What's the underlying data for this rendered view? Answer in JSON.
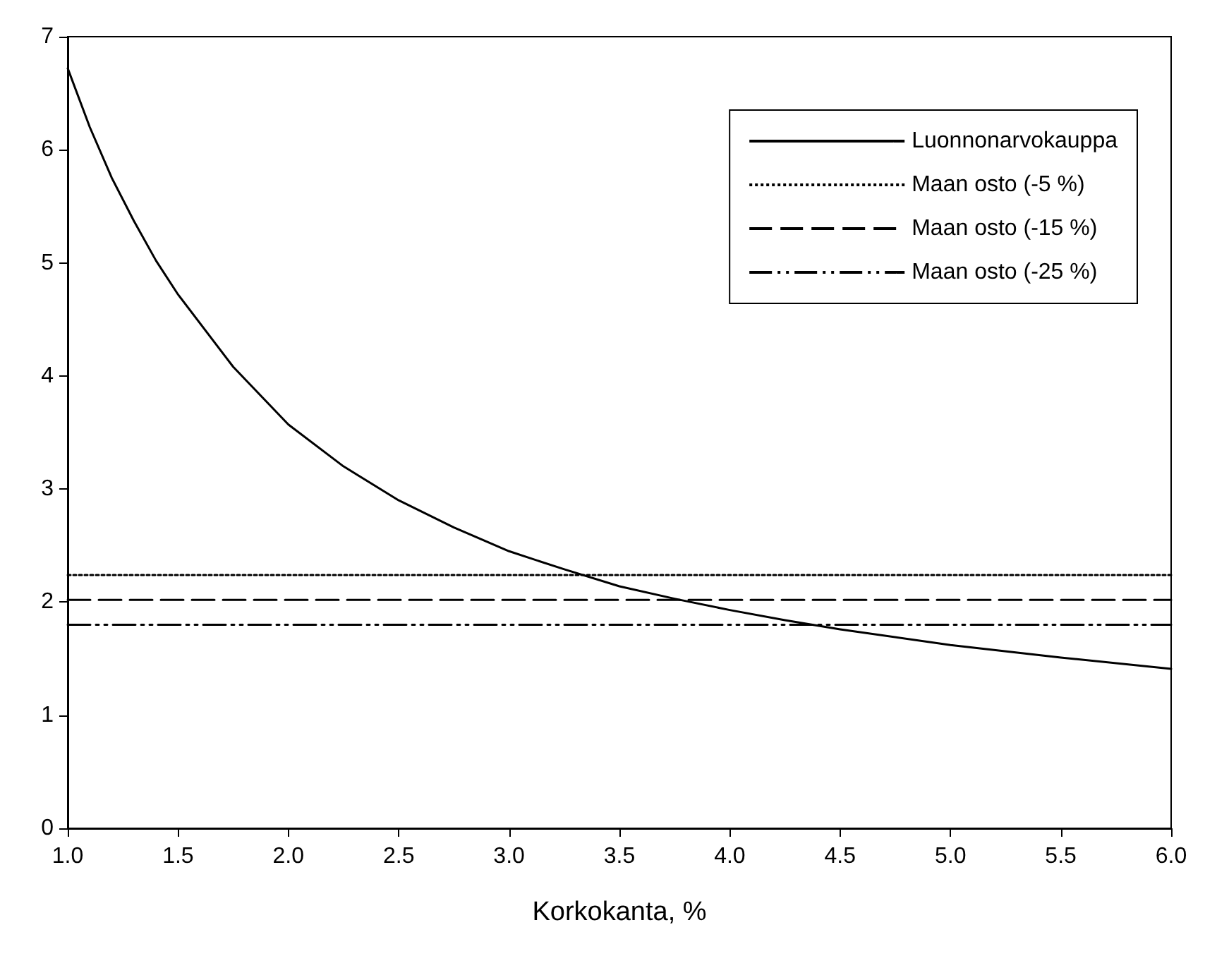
{
  "chart_data": {
    "type": "line",
    "xlabel": "Korkokanta, %",
    "xlim": [
      1,
      6
    ],
    "ylim": [
      0,
      7
    ],
    "xticks": [
      {
        "value": 1,
        "label": "1.0"
      },
      {
        "value": 1.5,
        "label": "1.5"
      },
      {
        "value": 2,
        "label": "2.0"
      },
      {
        "value": 2.5,
        "label": "2.5"
      },
      {
        "value": 3,
        "label": "3.0"
      },
      {
        "value": 3.5,
        "label": "3.5"
      },
      {
        "value": 4,
        "label": "4.0"
      },
      {
        "value": 4.5,
        "label": "4.5"
      },
      {
        "value": 5,
        "label": "5.0"
      },
      {
        "value": 5.5,
        "label": "5.5"
      },
      {
        "value": 6,
        "label": "6.0"
      }
    ],
    "yticks": [
      0,
      1,
      2,
      3,
      4,
      5,
      6,
      7
    ],
    "grid": false,
    "legend": "top right",
    "marker": "none",
    "series": [
      {
        "name": "Luonnonarvokauppa",
        "color": "#000000",
        "line_style": "solid",
        "x": [
          1,
          1.1,
          1.2,
          1.3,
          1.4,
          1.5,
          1.75,
          2,
          2.25,
          2.5,
          2.75,
          3,
          3.25,
          3.5,
          3.75,
          4,
          4.25,
          4.5,
          5,
          5.5,
          6
        ],
        "values": [
          6.72,
          6.2,
          5.75,
          5.37,
          5.02,
          4.72,
          4.08,
          3.57,
          3.2,
          2.9,
          2.66,
          2.45,
          2.29,
          2.14,
          2.03,
          1.93,
          1.84,
          1.76,
          1.62,
          1.51,
          1.41
        ]
      },
      {
        "name": "Maan osto (-5 %)",
        "color": "#000000",
        "line_style": "dotted",
        "x": [
          1,
          6
        ],
        "values": [
          2.24,
          2.24
        ]
      },
      {
        "name": "Maan osto (-15 %)",
        "color": "#000000",
        "line_style": "dashed",
        "x": [
          1,
          6
        ],
        "values": [
          2.02,
          2.02
        ]
      },
      {
        "name": "Maan osto (-25 %)",
        "color": "#000000",
        "line_style": "dashdotdot",
        "x": [
          1,
          6
        ],
        "values": [
          1.8,
          1.8
        ]
      }
    ]
  }
}
